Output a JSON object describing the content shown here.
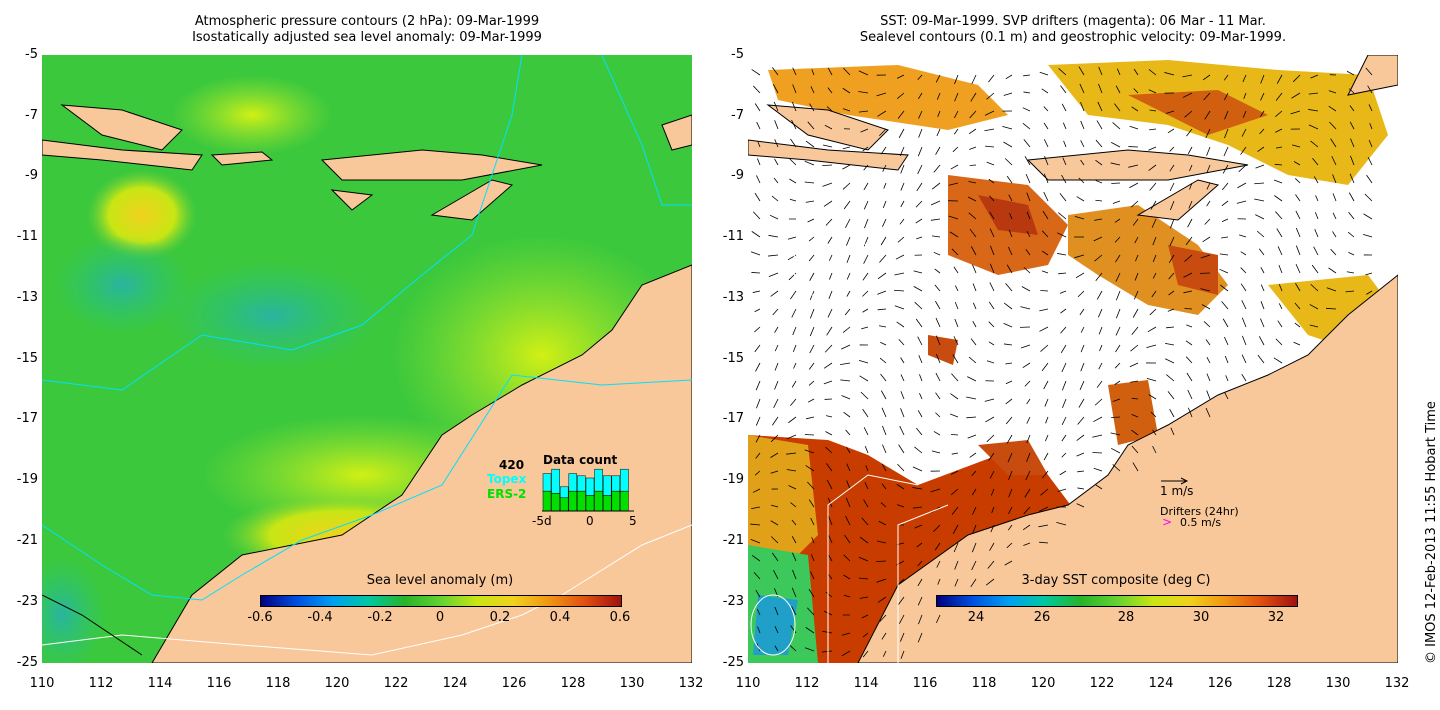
{
  "left_panel": {
    "title_line1": "Atmospheric pressure contours (2 hPa): 09-Mar-1999",
    "title_line2": "Isostatically adjusted sea level anomaly: 09-Mar-1999",
    "y_ticks": [
      "-5",
      "-7",
      "-9",
      "-11",
      "-13",
      "-15",
      "-17",
      "-19",
      "-21",
      "-23",
      "-25"
    ],
    "x_ticks": [
      "110",
      "112",
      "114",
      "116",
      "118",
      "120",
      "122",
      "124",
      "126",
      "128",
      "130",
      "132"
    ],
    "colorbar_title": "Sea level anomaly (m)",
    "colorbar_ticks": [
      "-0.6",
      "-0.4",
      "-0.2",
      "0",
      "0.2",
      "0.4",
      "0.6"
    ],
    "data_count": {
      "title": "Data count",
      "max": "420",
      "topex_label": "Topex",
      "ers2_label": "ERS-2",
      "x_ticks": [
        "-5d",
        "0",
        "5"
      ],
      "topex_color": "#00ffff",
      "ers2_color": "#00e000",
      "bars_total": [
        0.85,
        0.95,
        0.55,
        0.85,
        0.8,
        0.75,
        0.95,
        0.8,
        0.8,
        0.95
      ],
      "bars_ers2": [
        0.45,
        0.4,
        0.3,
        0.45,
        0.45,
        0.35,
        0.45,
        0.35,
        0.45,
        0.45
      ]
    }
  },
  "right_panel": {
    "title_line1": "SST: 09-Mar-1999. SVP drifters (magenta): 06 Mar - 11 Mar.",
    "title_line2": "Sealevel contours (0.1 m) and geostrophic velocity: 09-Mar-1999.",
    "y_ticks": [
      "-5",
      "-7",
      "-9",
      "-11",
      "-13",
      "-15",
      "-17",
      "-19",
      "-21",
      "-23",
      "-25"
    ],
    "x_ticks": [
      "110",
      "112",
      "114",
      "116",
      "118",
      "120",
      "122",
      "124",
      "126",
      "128",
      "130",
      "132"
    ],
    "colorbar_title": "3-day SST composite (deg C)",
    "colorbar_ticks": [
      "24",
      "26",
      "28",
      "30",
      "32"
    ],
    "velocity_scale_label": "1 m/s",
    "drifters_label": "Drifters (24hr)",
    "drifter_speed_label": "0.5 m/s",
    "drifter_color": "#ff00ff"
  },
  "credit": "© IMOS 12-Feb-2013 11:55 Hobart Time",
  "colors": {
    "land": "#f8c79a",
    "ocean_green": "#3cc83c",
    "warm_sst": "#c83c00"
  }
}
